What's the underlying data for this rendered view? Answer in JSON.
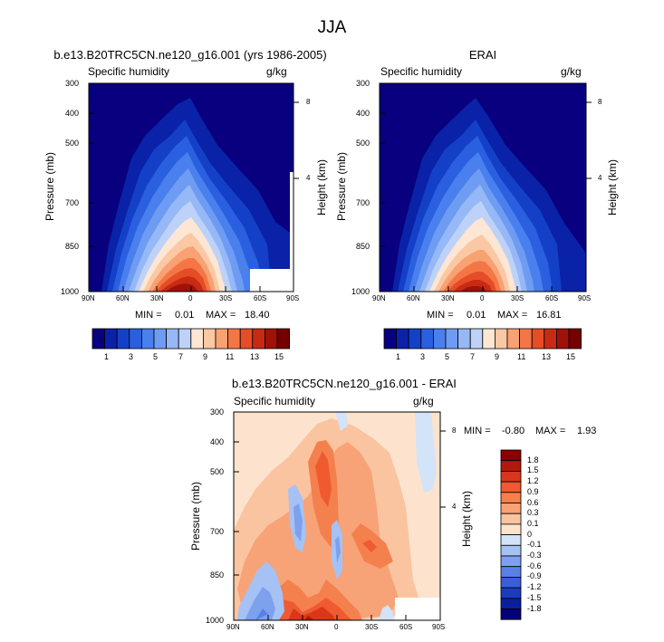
{
  "figure": {
    "title": "JJA",
    "panels": [
      {
        "title": "b.e13.B20TRC5CN.ne120_g16.001 (yrs 1986-2005)",
        "left_label": "Specific humidity",
        "right_label": "g/kg",
        "ylabel": "Pressure (mb)",
        "ylabel_right": "Height (km)",
        "yticks": [
          "300",
          "400",
          "500",
          "700",
          "850",
          "1000"
        ],
        "yticks_right": [
          "8",
          "4"
        ],
        "xticks": [
          "90N",
          "60N",
          "30N",
          "0",
          "30S",
          "60S",
          "90S"
        ],
        "min_label": "MIN =",
        "min_value": "0.01",
        "max_label": "MAX =",
        "max_value": "18.40",
        "colorbar_ticks": [
          "1",
          "3",
          "5",
          "7",
          "9",
          "11",
          "13",
          "15"
        ]
      },
      {
        "title": "ERAI",
        "left_label": "Specific humidity",
        "right_label": "g/kg",
        "ylabel": "Pressure (mb)",
        "ylabel_right": "Height (km)",
        "yticks": [
          "300",
          "400",
          "500",
          "700",
          "850",
          "1000"
        ],
        "yticks_right": [
          "8",
          "4"
        ],
        "xticks": [
          "90N",
          "60N",
          "30N",
          "0",
          "30S",
          "60S",
          "90S"
        ],
        "min_label": "MIN =",
        "min_value": "0.01",
        "max_label": "MAX =",
        "max_value": "16.81",
        "colorbar_ticks": [
          "1",
          "3",
          "5",
          "7",
          "9",
          "11",
          "13",
          "15"
        ]
      },
      {
        "title": "b.e13.B20TRC5CN.ne120_g16.001 - ERAI",
        "left_label": "Specific humidity",
        "right_label": "g/kg",
        "ylabel": "Pressure (mb)",
        "ylabel_right": "Height (km)",
        "yticks": [
          "300",
          "400",
          "500",
          "700",
          "850",
          "1000"
        ],
        "yticks_right": [
          "8",
          "4"
        ],
        "xticks": [
          "90N",
          "60N",
          "30N",
          "0",
          "30S",
          "60S",
          "90S"
        ],
        "min_label": "MIN =",
        "min_value": "-0.80",
        "max_label": "MAX =",
        "max_value": "1.93",
        "colorbar_ticks": [
          "1.8",
          "1.5",
          "1.2",
          "0.9",
          "0.6",
          "0.3",
          "0.1",
          "0",
          "-0.1",
          "-0.3",
          "-0.6",
          "-0.9",
          "-1.2",
          "-1.5",
          "-1.8"
        ]
      }
    ]
  },
  "colors": {
    "seq_palette": [
      "#08007f",
      "#0a22a8",
      "#1440c8",
      "#2a5fe0",
      "#4a7fee",
      "#6f9cf3",
      "#96b8f6",
      "#bed2f8",
      "#fde6d4",
      "#fbc8a4",
      "#f8a173",
      "#f47646",
      "#e44d25",
      "#c72b13",
      "#a01208",
      "#750000"
    ],
    "div_palette": [
      "#8b0000",
      "#b3180c",
      "#d9361a",
      "#ef5a30",
      "#f4804e",
      "#f7a377",
      "#fac4a1",
      "#fde3cd",
      "#d3e3f8",
      "#a6c1f3",
      "#7ea1ee",
      "#5a80e6",
      "#3a5ed8",
      "#1c3cbf",
      "#0a1e9e",
      "#04007a"
    ]
  },
  "chart_data": [
    {
      "type": "heatmap",
      "title": "b.e13.B20TRC5CN.ne120_g16.001 (yrs 1986-2005)",
      "x": [
        "90N",
        "60N",
        "30N",
        "0",
        "30S",
        "60S",
        "90S"
      ],
      "y_pressure_mb": [
        1000,
        850,
        700,
        500,
        400,
        300
      ],
      "y_height_km": [
        4,
        8
      ],
      "contour_levels": [
        1,
        2,
        3,
        4,
        5,
        6,
        7,
        8,
        9,
        10,
        11,
        12,
        13,
        14,
        15,
        16
      ],
      "min": 0.01,
      "max": 18.4,
      "units": "g/kg",
      "peak_latitude": "about 5N, 1000 mb",
      "missing_region": "below surface near 60S-90S at 1000-900 mb, and near 90S below 450 mb"
    },
    {
      "type": "heatmap",
      "title": "ERAI",
      "x": [
        "90N",
        "60N",
        "30N",
        "0",
        "30S",
        "60S",
        "90S"
      ],
      "y_pressure_mb": [
        1000,
        850,
        700,
        500,
        400,
        300
      ],
      "y_height_km": [
        4,
        8
      ],
      "contour_levels": [
        1,
        2,
        3,
        4,
        5,
        6,
        7,
        8,
        9,
        10,
        11,
        12,
        13,
        14,
        15,
        16
      ],
      "min": 0.01,
      "max": 16.81,
      "units": "g/kg"
    },
    {
      "type": "heatmap",
      "title": "b.e13.B20TRC5CN.ne120_g16.001 - ERAI",
      "x": [
        "90N",
        "60N",
        "30N",
        "0",
        "30S",
        "60S",
        "90S"
      ],
      "y_pressure_mb": [
        1000,
        850,
        700,
        500,
        400,
        300
      ],
      "y_height_km": [
        4,
        8
      ],
      "contour_levels": [
        -1.8,
        -1.5,
        -1.2,
        -0.9,
        -0.6,
        -0.3,
        -0.1,
        0,
        0.1,
        0.3,
        0.6,
        0.9,
        1.2,
        1.5,
        1.8
      ],
      "min": -0.8,
      "max": 1.93,
      "units": "g/kg"
    }
  ]
}
